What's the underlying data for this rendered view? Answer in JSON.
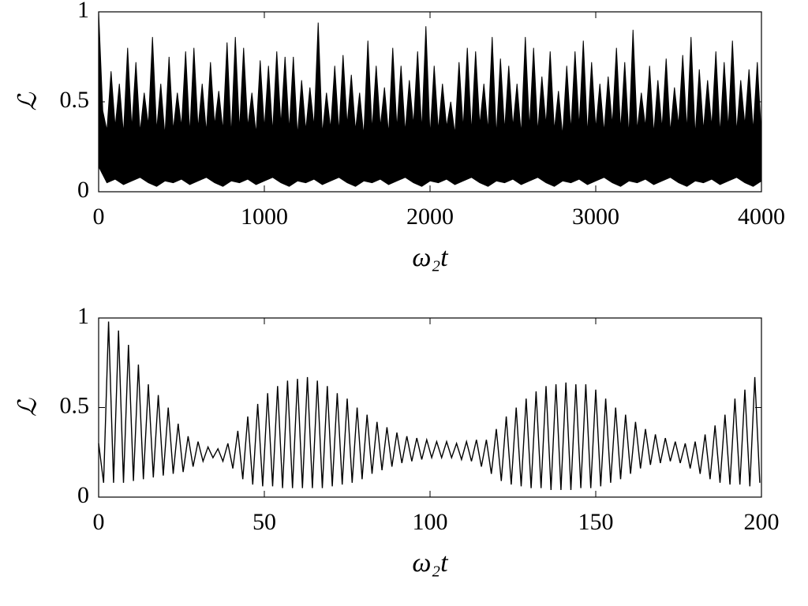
{
  "chart_data": [
    {
      "type": "band",
      "xlabel": "ω₂t",
      "ylabel": "ℒ",
      "xlim": [
        0,
        4000
      ],
      "xticks": [
        0,
        1000,
        2000,
        3000,
        4000
      ],
      "ylim": [
        0,
        1
      ],
      "yticks": [
        0,
        0.5,
        1
      ],
      "color": "#000000",
      "upper": {
        "x": [
          0,
          25,
          50,
          75,
          100,
          125,
          150,
          175,
          200,
          225,
          250,
          275,
          300,
          325,
          350,
          375,
          400,
          425,
          450,
          475,
          500,
          525,
          550,
          575,
          600,
          625,
          650,
          675,
          700,
          725,
          750,
          775,
          800,
          825,
          850,
          875,
          900,
          925,
          950,
          975,
          1000,
          1025,
          1050,
          1075,
          1100,
          1125,
          1150,
          1175,
          1200,
          1225,
          1250,
          1275,
          1300,
          1325,
          1350,
          1375,
          1400,
          1425,
          1450,
          1475,
          1500,
          1525,
          1550,
          1575,
          1600,
          1625,
          1650,
          1675,
          1700,
          1725,
          1750,
          1775,
          1800,
          1825,
          1850,
          1875,
          1900,
          1925,
          1950,
          1975,
          2000,
          2025,
          2050,
          2075,
          2100,
          2125,
          2150,
          2175,
          2200,
          2225,
          2250,
          2275,
          2300,
          2325,
          2350,
          2375,
          2400,
          2425,
          2450,
          2475,
          2500,
          2525,
          2550,
          2575,
          2600,
          2625,
          2650,
          2675,
          2700,
          2725,
          2750,
          2775,
          2800,
          2825,
          2850,
          2875,
          2900,
          2925,
          2950,
          2975,
          3000,
          3025,
          3050,
          3075,
          3100,
          3125,
          3150,
          3175,
          3200,
          3225,
          3250,
          3275,
          3300,
          3325,
          3350,
          3375,
          3400,
          3425,
          3450,
          3475,
          3500,
          3525,
          3550,
          3575,
          3600,
          3625,
          3650,
          3675,
          3700,
          3725,
          3750,
          3775,
          3800,
          3825,
          3850,
          3875,
          3900,
          3925,
          3950,
          3975,
          4000
        ],
        "values": [
          1.0,
          0.45,
          0.34,
          0.67,
          0.36,
          0.6,
          0.32,
          0.8,
          0.35,
          0.72,
          0.33,
          0.55,
          0.37,
          0.86,
          0.34,
          0.6,
          0.31,
          0.75,
          0.34,
          0.55,
          0.36,
          0.78,
          0.32,
          0.8,
          0.35,
          0.6,
          0.33,
          0.72,
          0.37,
          0.56,
          0.34,
          0.83,
          0.31,
          0.86,
          0.34,
          0.8,
          0.36,
          0.55,
          0.32,
          0.73,
          0.35,
          0.7,
          0.33,
          0.78,
          0.37,
          0.75,
          0.34,
          0.75,
          0.31,
          0.62,
          0.34,
          0.58,
          0.36,
          0.94,
          0.32,
          0.55,
          0.35,
          0.7,
          0.33,
          0.76,
          0.37,
          0.65,
          0.34,
          0.55,
          0.31,
          0.84,
          0.34,
          0.7,
          0.36,
          0.58,
          0.32,
          0.8,
          0.35,
          0.7,
          0.33,
          0.62,
          0.37,
          0.78,
          0.34,
          0.92,
          0.31,
          0.7,
          0.34,
          0.6,
          0.36,
          0.5,
          0.32,
          0.72,
          0.35,
          0.8,
          0.33,
          0.78,
          0.37,
          0.6,
          0.34,
          0.86,
          0.31,
          0.74,
          0.34,
          0.7,
          0.36,
          0.6,
          0.32,
          0.86,
          0.35,
          0.8,
          0.33,
          0.64,
          0.37,
          0.78,
          0.34,
          0.56,
          0.31,
          0.7,
          0.34,
          0.78,
          0.36,
          0.84,
          0.32,
          0.72,
          0.35,
          0.6,
          0.33,
          0.64,
          0.37,
          0.8,
          0.34,
          0.72,
          0.31,
          0.9,
          0.34,
          0.55,
          0.36,
          0.7,
          0.32,
          0.62,
          0.35,
          0.74,
          0.33,
          0.58,
          0.37,
          0.76,
          0.34,
          0.86,
          0.31,
          0.68,
          0.34,
          0.62,
          0.36,
          0.78,
          0.32,
          0.72,
          0.35,
          0.84,
          0.33,
          0.62,
          0.37,
          0.68,
          0.34,
          0.72,
          0.31
        ]
      },
      "lower": {
        "x": [
          0,
          50,
          100,
          150,
          200,
          250,
          300,
          350,
          400,
          450,
          500,
          550,
          600,
          650,
          700,
          750,
          800,
          850,
          900,
          950,
          1000,
          1050,
          1100,
          1150,
          1200,
          1250,
          1300,
          1350,
          1400,
          1450,
          1500,
          1550,
          1600,
          1650,
          1700,
          1750,
          1800,
          1850,
          1900,
          1950,
          2000,
          2050,
          2100,
          2150,
          2200,
          2250,
          2300,
          2350,
          2400,
          2450,
          2500,
          2550,
          2600,
          2650,
          2700,
          2750,
          2800,
          2850,
          2900,
          2950,
          3000,
          3050,
          3100,
          3150,
          3200,
          3250,
          3300,
          3350,
          3400,
          3450,
          3500,
          3550,
          3600,
          3650,
          3700,
          3750,
          3800,
          3850,
          3900,
          3950,
          4000
        ],
        "values": [
          0.14,
          0.05,
          0.07,
          0.04,
          0.06,
          0.08,
          0.05,
          0.03,
          0.06,
          0.05,
          0.07,
          0.04,
          0.06,
          0.08,
          0.05,
          0.03,
          0.06,
          0.05,
          0.07,
          0.04,
          0.06,
          0.08,
          0.05,
          0.03,
          0.06,
          0.05,
          0.07,
          0.04,
          0.06,
          0.08,
          0.05,
          0.03,
          0.06,
          0.05,
          0.07,
          0.04,
          0.06,
          0.08,
          0.05,
          0.03,
          0.06,
          0.05,
          0.07,
          0.04,
          0.06,
          0.08,
          0.05,
          0.03,
          0.06,
          0.05,
          0.07,
          0.04,
          0.06,
          0.08,
          0.05,
          0.03,
          0.06,
          0.05,
          0.07,
          0.04,
          0.06,
          0.08,
          0.05,
          0.03,
          0.06,
          0.05,
          0.07,
          0.04,
          0.06,
          0.08,
          0.05,
          0.03,
          0.06,
          0.05,
          0.07,
          0.04,
          0.06,
          0.08,
          0.05,
          0.03,
          0.06
        ]
      }
    },
    {
      "type": "line",
      "xlabel": "ω₂t",
      "ylabel": "ℒ",
      "xlim": [
        0,
        200
      ],
      "xticks": [
        0,
        50,
        100,
        150,
        200
      ],
      "ylim": [
        0,
        1
      ],
      "yticks": [
        0,
        0.5,
        1
      ],
      "color": "#000000",
      "x": [
        0,
        1.5,
        3,
        4.5,
        6,
        7.5,
        9,
        10.5,
        12,
        13.5,
        15,
        16.5,
        18,
        19.5,
        21,
        22.5,
        24,
        25.5,
        27,
        28.5,
        30,
        31.5,
        33,
        34.5,
        36,
        37.5,
        39,
        40.5,
        42,
        43.5,
        45,
        46.5,
        48,
        49.5,
        51,
        52.5,
        54,
        55.5,
        57,
        58.5,
        60,
        61.5,
        63,
        64.5,
        66,
        67.5,
        69,
        70.5,
        72,
        73.5,
        75,
        76.5,
        78,
        79.5,
        81,
        82.5,
        84,
        85.5,
        87,
        88.5,
        90,
        91.5,
        93,
        94.5,
        96,
        97.5,
        99,
        100.5,
        102,
        103.5,
        105,
        106.5,
        108,
        109.5,
        111,
        112.5,
        114,
        115.5,
        117,
        118.5,
        120,
        121.5,
        123,
        124.5,
        126,
        127.5,
        129,
        130.5,
        132,
        133.5,
        135,
        136.5,
        138,
        139.5,
        141,
        142.5,
        144,
        145.5,
        147,
        148.5,
        150,
        151.5,
        153,
        154.5,
        156,
        157.5,
        159,
        160.5,
        162,
        163.5,
        165,
        166.5,
        168,
        169.5,
        171,
        172.5,
        174,
        175.5,
        177,
        178.5,
        180,
        181.5,
        183,
        184.5,
        186,
        187.5,
        189,
        190.5,
        192,
        193.5,
        195,
        196.5,
        198,
        199.5
      ],
      "values": [
        0.3,
        0.08,
        0.98,
        0.08,
        0.93,
        0.08,
        0.85,
        0.09,
        0.74,
        0.1,
        0.63,
        0.11,
        0.57,
        0.12,
        0.5,
        0.13,
        0.41,
        0.14,
        0.34,
        0.17,
        0.31,
        0.2,
        0.28,
        0.22,
        0.27,
        0.2,
        0.3,
        0.16,
        0.37,
        0.1,
        0.45,
        0.07,
        0.52,
        0.06,
        0.58,
        0.06,
        0.62,
        0.05,
        0.65,
        0.05,
        0.66,
        0.05,
        0.67,
        0.05,
        0.65,
        0.05,
        0.62,
        0.06,
        0.58,
        0.07,
        0.55,
        0.08,
        0.5,
        0.1,
        0.46,
        0.13,
        0.42,
        0.15,
        0.39,
        0.17,
        0.36,
        0.19,
        0.34,
        0.2,
        0.33,
        0.21,
        0.32,
        0.22,
        0.31,
        0.22,
        0.31,
        0.22,
        0.3,
        0.21,
        0.31,
        0.2,
        0.32,
        0.17,
        0.32,
        0.13,
        0.38,
        0.09,
        0.45,
        0.07,
        0.5,
        0.06,
        0.55,
        0.05,
        0.59,
        0.05,
        0.62,
        0.04,
        0.63,
        0.04,
        0.64,
        0.04,
        0.63,
        0.05,
        0.63,
        0.05,
        0.6,
        0.06,
        0.55,
        0.08,
        0.5,
        0.1,
        0.46,
        0.13,
        0.42,
        0.16,
        0.38,
        0.18,
        0.35,
        0.19,
        0.33,
        0.2,
        0.31,
        0.19,
        0.3,
        0.16,
        0.31,
        0.13,
        0.35,
        0.1,
        0.4,
        0.08,
        0.46,
        0.07,
        0.55,
        0.07,
        0.6,
        0.06,
        0.67,
        0.08
      ]
    }
  ]
}
